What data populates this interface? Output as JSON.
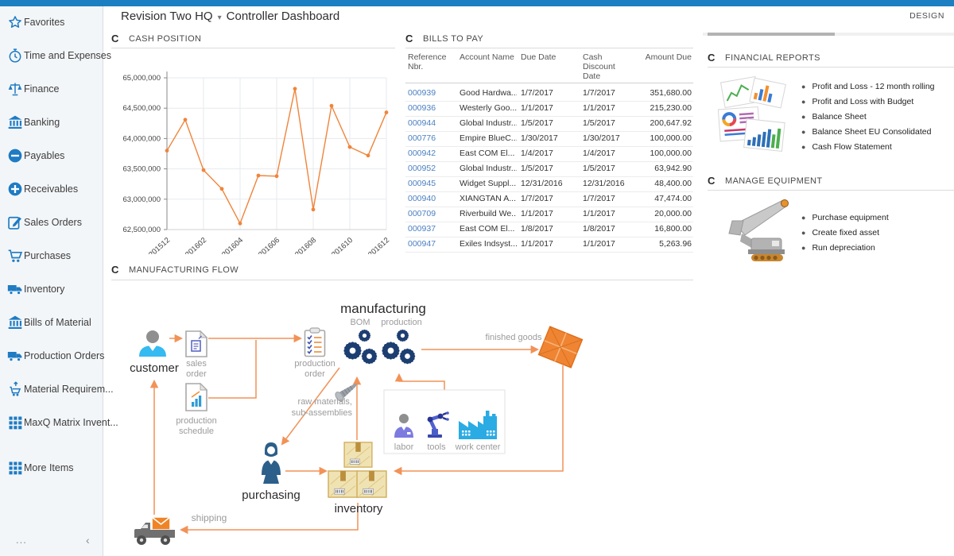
{
  "header": {
    "company": "Revision Two HQ",
    "caret": "▾",
    "dashboard": "Controller Dashboard",
    "design_label": "DESIGN"
  },
  "sidebar": {
    "items": [
      {
        "label": "Favorites",
        "icon": "star"
      },
      {
        "label": "Time and Expenses",
        "icon": "stopwatch"
      },
      {
        "label": "Finance",
        "icon": "scales"
      },
      {
        "label": "Banking",
        "icon": "bank"
      },
      {
        "label": "Payables",
        "icon": "minus"
      },
      {
        "label": "Receivables",
        "icon": "plus"
      },
      {
        "label": "Sales Orders",
        "icon": "edit"
      },
      {
        "label": "Purchases",
        "icon": "cart"
      },
      {
        "label": "Inventory",
        "icon": "truck"
      },
      {
        "label": "Bills of Material",
        "icon": "bank"
      },
      {
        "label": "Production Orders",
        "icon": "truck"
      },
      {
        "label": "Material Requirem...",
        "icon": "cart-up"
      },
      {
        "label": "MaxQ Matrix Invent...",
        "icon": "grid"
      },
      {
        "label": "More Items",
        "icon": "grid"
      }
    ],
    "footer": {
      "ellipsis": "...",
      "collapse": "‹"
    }
  },
  "widgets": {
    "cash_position": {
      "title": "CASH POSITION"
    },
    "bills_to_pay": {
      "title": "BILLS TO PAY",
      "columns": [
        "Reference Nbr.",
        "Account Name",
        "Due Date",
        "Cash Discount Date",
        "Amount Due"
      ],
      "rows": [
        {
          "ref": "000939",
          "account": "Good Hardwa...",
          "due": "1/7/2017",
          "discount": "1/7/2017",
          "amount": "351,680.00"
        },
        {
          "ref": "000936",
          "account": "Westerly Goo...",
          "due": "1/1/2017",
          "discount": "1/1/2017",
          "amount": "215,230.00"
        },
        {
          "ref": "000944",
          "account": "Global Industr...",
          "due": "1/5/2017",
          "discount": "1/5/2017",
          "amount": "200,647.92"
        },
        {
          "ref": "000776",
          "account": "Empire BlueC...",
          "due": "1/30/2017",
          "discount": "1/30/2017",
          "amount": "100,000.00"
        },
        {
          "ref": "000942",
          "account": "East COM El...",
          "due": "1/4/2017",
          "discount": "1/4/2017",
          "amount": "100,000.00"
        },
        {
          "ref": "000952",
          "account": "Global Industr...",
          "due": "1/5/2017",
          "discount": "1/5/2017",
          "amount": "63,942.90"
        },
        {
          "ref": "000945",
          "account": "Widget Suppl...",
          "due": "12/31/2016",
          "discount": "12/31/2016",
          "amount": "48,400.00"
        },
        {
          "ref": "000940",
          "account": "XIANGTAN A...",
          "due": "1/7/2017",
          "discount": "1/7/2017",
          "amount": "47,474.00"
        },
        {
          "ref": "000709",
          "account": "Riverbuild We...",
          "due": "1/1/2017",
          "discount": "1/1/2017",
          "amount": "20,000.00"
        },
        {
          "ref": "000937",
          "account": "East COM El...",
          "due": "1/8/2017",
          "discount": "1/8/2017",
          "amount": "16,800.00"
        },
        {
          "ref": "000947",
          "account": "Exiles Indsyst...",
          "due": "1/1/2017",
          "discount": "1/1/2017",
          "amount": "5,263.96"
        }
      ]
    },
    "financial_reports": {
      "title": "FINANCIAL REPORTS",
      "links": [
        "Profit and Loss - 12 month rolling",
        "Profit and Loss with Budget",
        "Balance Sheet",
        "Balance Sheet EU Consolidated",
        "Cash Flow Statement"
      ]
    },
    "manage_equipment": {
      "title": "MANAGE EQUIPMENT",
      "links": [
        "Purchase equipment",
        "Create fixed asset",
        "Run depreciation"
      ]
    },
    "manufacturing_flow": {
      "title": "MANUFACTURING FLOW",
      "labels": {
        "customer": "customer",
        "sales_order": {
          "line1": "sales",
          "line2": "order"
        },
        "production_schedule": {
          "line1": "production",
          "line2": "schedule"
        },
        "production_order": {
          "line1": "production",
          "line2": "order"
        },
        "manufacturing": "manufacturing",
        "bom": "BOM",
        "production": "production",
        "finished_goods": "finished goods",
        "raw_materials": {
          "line1": "raw materials,",
          "line2": "sub-assemblies"
        },
        "labor": "labor",
        "tools": "tools",
        "work_center": "work center",
        "purchasing": "purchasing",
        "inventory": "inventory",
        "shipping": "shipping"
      }
    }
  },
  "chart_data": {
    "type": "line",
    "title": "CASH POSITION",
    "x": [
      "201512",
      "201601",
      "201602",
      "201603",
      "201604",
      "201605",
      "201606",
      "201607",
      "201608",
      "201609",
      "201610",
      "201611",
      "201612"
    ],
    "values": [
      63800000,
      64310000,
      63480000,
      63170000,
      62600000,
      63390000,
      63380000,
      64820000,
      62830000,
      64540000,
      63860000,
      63720000,
      64430000
    ],
    "x_tick_labels": [
      "201512",
      "201602",
      "201604",
      "201606",
      "201608",
      "201610",
      "201612"
    ],
    "y_ticks": [
      "65,000,000",
      "64,500,000",
      "64,000,000",
      "63,500,000",
      "63,000,000",
      "62,500,000"
    ],
    "y_tick_step": 500000,
    "ylim": [
      62500000,
      65000000
    ],
    "line_color": "#f0843b",
    "grid": true,
    "legend": false
  },
  "colors": {
    "topbar_blue": "#1c7fc2",
    "sidebar_icon_blue": "#1e7bc4",
    "link_blue": "#4a7fc1",
    "chart_orange": "#f0843b",
    "arrow_orange": "#f29257",
    "gear_navy": "#1d3e71"
  }
}
